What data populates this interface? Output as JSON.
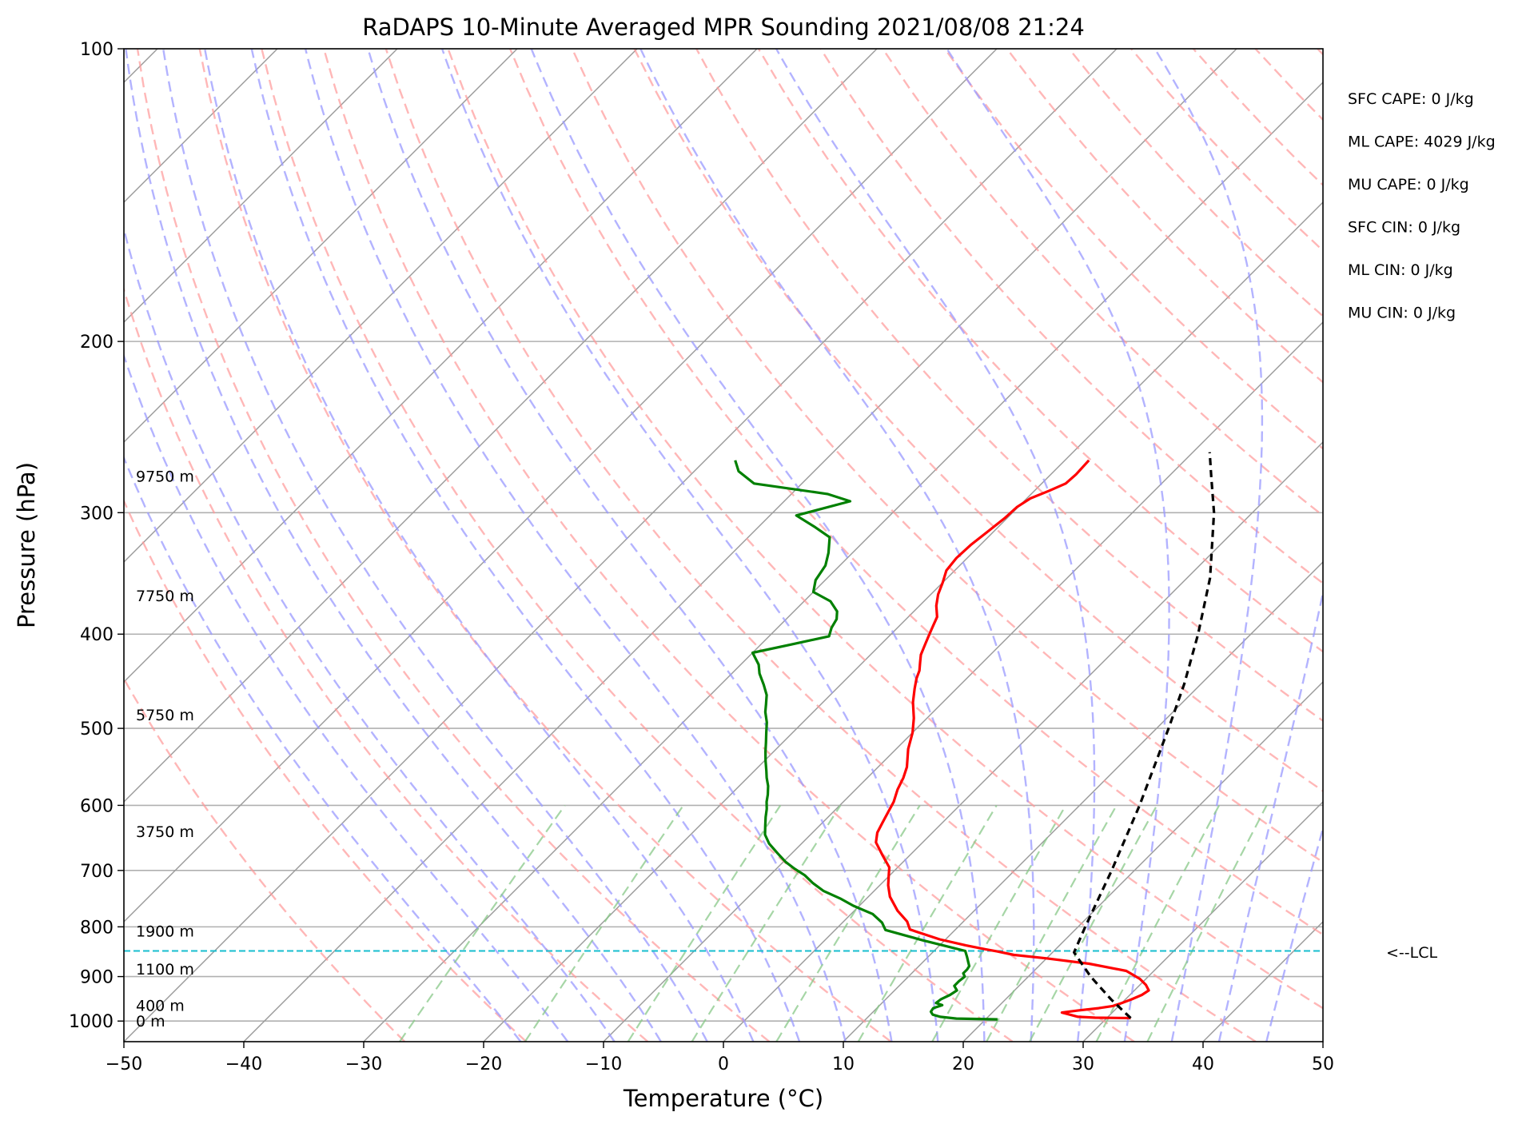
{
  "chart_data": {
    "type": "line",
    "title": "RaDAPS 10-Minute Averaged MPR Sounding 2021/08/08 21:24",
    "xlabel": "Temperature (°C)",
    "ylabel": "Pressure (hPa)",
    "xlim": [
      -50,
      50
    ],
    "ylim": [
      1050,
      100
    ],
    "yscale": "log",
    "skew": true,
    "grid": true,
    "x_ticks": [
      "−50",
      "−40",
      "−30",
      "−20",
      "−10",
      "0",
      "10",
      "20",
      "30",
      "40",
      "50"
    ],
    "y_ticks": [
      {
        "p": 100,
        "label": "100"
      },
      {
        "p": 200,
        "label": "200"
      },
      {
        "p": 300,
        "label": "300"
      },
      {
        "p": 400,
        "label": "400"
      },
      {
        "p": 500,
        "label": "500"
      },
      {
        "p": 600,
        "label": "600"
      },
      {
        "p": 700,
        "label": "700"
      },
      {
        "p": 800,
        "label": "800"
      },
      {
        "p": 900,
        "label": "900"
      },
      {
        "p": 1000,
        "label": "1000"
      }
    ],
    "height_labels": [
      {
        "p": 1000,
        "label": "0 m"
      },
      {
        "p": 963,
        "label": "400 m"
      },
      {
        "p": 884,
        "label": "1100 m"
      },
      {
        "p": 808,
        "label": "1900 m"
      },
      {
        "p": 638,
        "label": "3750 m"
      },
      {
        "p": 484,
        "label": "5750 m"
      },
      {
        "p": 365,
        "label": "7750 m"
      },
      {
        "p": 275,
        "label": "9750 m"
      }
    ],
    "lcl": {
      "p": 847,
      "label": "<--LCL",
      "color": "#17becf"
    },
    "series": [
      {
        "role": "temperature",
        "color": "#ff0000",
        "points": [
          [
            32.0,
            993
          ],
          [
            29.0,
            992
          ],
          [
            27.5,
            990
          ],
          [
            25.8,
            980
          ],
          [
            27.0,
            975
          ],
          [
            28.5,
            970
          ],
          [
            29.5,
            965
          ],
          [
            30.0,
            958
          ],
          [
            30.5,
            950
          ],
          [
            31.0,
            940
          ],
          [
            31.2,
            930
          ],
          [
            30.5,
            918
          ],
          [
            29.5,
            905
          ],
          [
            27.7,
            888
          ],
          [
            24.0,
            873
          ],
          [
            20.0,
            862
          ],
          [
            17.0,
            855
          ],
          [
            15.3,
            848
          ],
          [
            14.2,
            844
          ],
          [
            12.2,
            836
          ],
          [
            9.5,
            824
          ],
          [
            6.2,
            805
          ],
          [
            5.3,
            790
          ],
          [
            3.6,
            770
          ],
          [
            1.8,
            745
          ],
          [
            0.7,
            725
          ],
          [
            0.0,
            710
          ],
          [
            -0.7,
            695
          ],
          [
            -2.3,
            675
          ],
          [
            -3.9,
            655
          ],
          [
            -4.6,
            640
          ],
          [
            -5.0,
            625
          ],
          [
            -5.4,
            610
          ],
          [
            -5.8,
            595
          ],
          [
            -6.5,
            578
          ],
          [
            -7.0,
            562
          ],
          [
            -7.6,
            548
          ],
          [
            -8.2,
            538
          ],
          [
            -9.0,
            525
          ],
          [
            -10.0,
            505
          ],
          [
            -11.1,
            488
          ],
          [
            -12.5,
            470
          ],
          [
            -13.5,
            455
          ],
          [
            -14.2,
            444
          ],
          [
            -14.6,
            436
          ],
          [
            -15.2,
            428
          ],
          [
            -15.8,
            420
          ],
          [
            -16.3,
            410
          ],
          [
            -16.7,
            402
          ],
          [
            -17.1,
            394
          ],
          [
            -17.6,
            384
          ],
          [
            -18.6,
            374
          ],
          [
            -19.4,
            364
          ],
          [
            -20.0,
            354
          ],
          [
            -20.7,
            344
          ],
          [
            -20.9,
            334
          ],
          [
            -20.8,
            324
          ],
          [
            -20.5,
            314
          ],
          [
            -20.2,
            304
          ],
          [
            -20.1,
            296
          ],
          [
            -19.7,
            290
          ],
          [
            -18.8,
            285
          ],
          [
            -18.0,
            280
          ],
          [
            -17.9,
            274
          ],
          [
            -18.0,
            265
          ]
        ]
      },
      {
        "role": "dewpoint",
        "color": "#008000",
        "points": [
          [
            21.0,
            996
          ],
          [
            17.5,
            994
          ],
          [
            16.0,
            990
          ],
          [
            15.2,
            985
          ],
          [
            14.8,
            978
          ],
          [
            14.7,
            970
          ],
          [
            15.2,
            963
          ],
          [
            14.5,
            958
          ],
          [
            14.6,
            950
          ],
          [
            15.0,
            940
          ],
          [
            15.2,
            930
          ],
          [
            14.6,
            920
          ],
          [
            14.6,
            910
          ],
          [
            14.7,
            900
          ],
          [
            14.3,
            893
          ],
          [
            14.3,
            885
          ],
          [
            14.2,
            878
          ],
          [
            13.8,
            870
          ],
          [
            13.3,
            860
          ],
          [
            12.6,
            847
          ],
          [
            10.5,
            837
          ],
          [
            8.2,
            826
          ],
          [
            6.2,
            816
          ],
          [
            4.2,
            806
          ],
          [
            3.3,
            792
          ],
          [
            1.8,
            776
          ],
          [
            -0.5,
            761
          ],
          [
            -2.2,
            748
          ],
          [
            -4.2,
            735
          ],
          [
            -5.8,
            721
          ],
          [
            -7.1,
            708
          ],
          [
            -8.5,
            697
          ],
          [
            -9.8,
            686
          ],
          [
            -11.2,
            672
          ],
          [
            -12.7,
            657
          ],
          [
            -13.8,
            643
          ],
          [
            -14.5,
            630
          ],
          [
            -15.2,
            617
          ],
          [
            -15.8,
            605
          ],
          [
            -16.4,
            595
          ],
          [
            -16.9,
            585
          ],
          [
            -17.6,
            573
          ],
          [
            -18.4,
            562
          ],
          [
            -19.0,
            553
          ],
          [
            -19.9,
            540
          ],
          [
            -20.7,
            528
          ],
          [
            -21.4,
            517
          ],
          [
            -22.2,
            505
          ],
          [
            -23.0,
            493
          ],
          [
            -24.0,
            481
          ],
          [
            -24.6,
            472
          ],
          [
            -25.3,
            462
          ],
          [
            -26.4,
            451
          ],
          [
            -27.7,
            439
          ],
          [
            -28.5,
            430
          ],
          [
            -30.0,
            418
          ],
          [
            -27.5,
            410
          ],
          [
            -25.0,
            402
          ],
          [
            -25.5,
            394
          ],
          [
            -25.8,
            386
          ],
          [
            -26.4,
            379
          ],
          [
            -27.8,
            370
          ],
          [
            -30.0,
            362
          ],
          [
            -30.8,
            352
          ],
          [
            -31.2,
            340
          ],
          [
            -32.0,
            330
          ],
          [
            -33.2,
            318
          ],
          [
            -35.4,
            310
          ],
          [
            -37.8,
            302
          ],
          [
            -34.5,
            292
          ],
          [
            -37.0,
            287
          ],
          [
            -44.0,
            280
          ],
          [
            -46.3,
            272
          ],
          [
            -47.5,
            265
          ]
        ]
      },
      {
        "role": "parcel",
        "color": "#000000",
        "style": "dashed",
        "points": [
          [
            32.0,
            993
          ],
          [
            28.8,
            950
          ],
          [
            25.2,
            900
          ],
          [
            21.8,
            850
          ],
          [
            20.6,
            800
          ],
          [
            18.1,
            700
          ],
          [
            15.0,
            600
          ],
          [
            11.0,
            500
          ],
          [
            8.6,
            450
          ],
          [
            5.6,
            400
          ],
          [
            1.9,
            350
          ],
          [
            -3.2,
            300
          ],
          [
            -6.5,
            275
          ],
          [
            -8.6,
            260
          ]
        ]
      }
    ],
    "stats": [
      "SFC CAPE: 0 J/kg",
      "ML CAPE: 4029 J/kg",
      "MU CAPE: 0 J/kg",
      "SFC CIN: 0 J/kg",
      "ML CIN: 0 J/kg",
      "MU CIN: 0 J/kg"
    ],
    "colors": {
      "dry_adiabat": "#ff9999",
      "moist_adiabat": "#9999ff",
      "mixing_ratio": "#88c888",
      "isotherm": "#999999",
      "isobar": "#b0b0b0"
    }
  }
}
